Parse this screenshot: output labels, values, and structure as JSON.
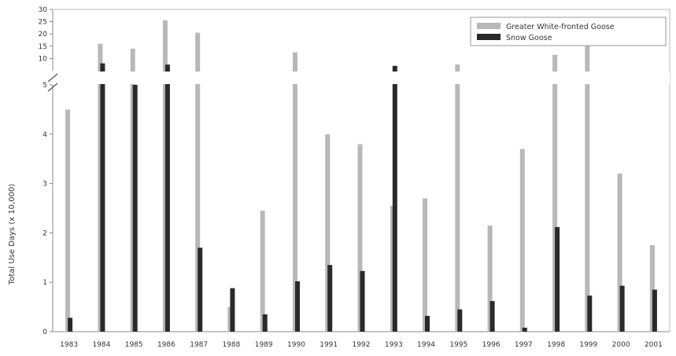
{
  "chart_data": {
    "type": "bar",
    "ylabel": "Total Use Days (x 10,000)",
    "categories": [
      "1983",
      "1984",
      "1985",
      "1986",
      "1987",
      "1988",
      "1989",
      "1990",
      "1991",
      "1992",
      "1993",
      "1994",
      "1995",
      "1996",
      "1997",
      "1998",
      "1999",
      "2000",
      "2001"
    ],
    "series": [
      {
        "name": "Greater White-fronted Goose",
        "color": "#b8b8b8",
        "values": [
          4.5,
          16,
          14,
          25.5,
          20.5,
          0.5,
          2.45,
          12.5,
          4.0,
          3.8,
          2.55,
          2.7,
          7.5,
          2.15,
          3.7,
          11.5,
          16,
          3.2,
          1.75
        ]
      },
      {
        "name": "Snow Goose",
        "color": "#2a2a2a",
        "values": [
          0.28,
          8,
          5,
          7.5,
          1.7,
          0.88,
          0.35,
          1.02,
          1.35,
          1.23,
          7,
          0.32,
          0.45,
          0.62,
          0.08,
          2.12,
          0.73,
          0.93,
          0.85
        ]
      }
    ],
    "y_axis": {
      "lower_range": [
        0,
        5
      ],
      "lower_ticks": [
        "0",
        "1",
        "2",
        "3",
        "4",
        "5"
      ],
      "upper_range": [
        5,
        30
      ],
      "upper_ticks": [
        "10",
        "15",
        "20",
        "25",
        "30"
      ],
      "axis_break": true
    },
    "legend_position": "top-right",
    "grid": false
  }
}
